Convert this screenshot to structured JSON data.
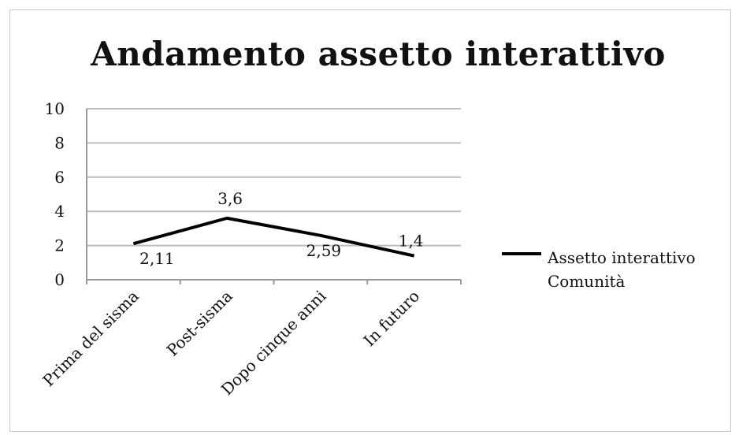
{
  "chart_data": {
    "type": "line",
    "title": "Andamento assetto interattivo",
    "categories": [
      "Prima del sisma",
      "Post-sisma",
      "Dopo cinque anni",
      "In futuro"
    ],
    "series": [
      {
        "name": "Assetto interattivo Comunità",
        "values": [
          2.11,
          3.6,
          2.59,
          1.4
        ],
        "labels": [
          "2,11",
          "3,6",
          "2,59",
          "1,4"
        ],
        "color": "#000000"
      }
    ],
    "ylim": [
      0,
      10
    ],
    "yticks": [
      0,
      2,
      4,
      6,
      8,
      10
    ],
    "grid": true,
    "legend_position": "right"
  }
}
